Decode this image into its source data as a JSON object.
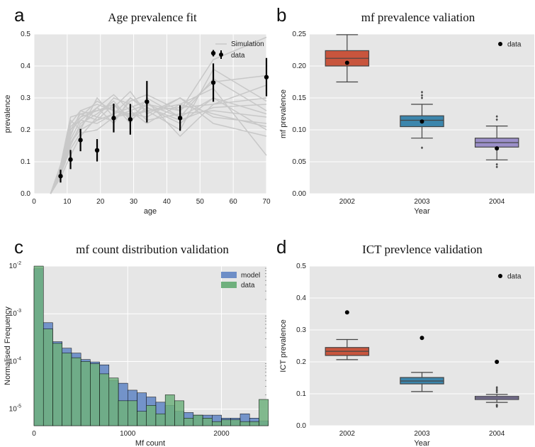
{
  "chart_data": [
    {
      "panel": "a",
      "type": "line",
      "title": "Age prevalence fit",
      "xlabel": "age",
      "ylabel": "prevalence",
      "xlim": [
        0,
        70
      ],
      "ylim": [
        0,
        0.5
      ],
      "xticks": [
        "0",
        "10",
        "20",
        "30",
        "40",
        "50",
        "60",
        "70"
      ],
      "yticks": [
        "0.0",
        "0.1",
        "0.2",
        "0.3",
        "0.4",
        "0.5"
      ],
      "grid": true,
      "legend_position": "top-right",
      "legend": [
        "Simulation",
        "data"
      ],
      "x": [
        5,
        8,
        11,
        14,
        19,
        24,
        29,
        34,
        44,
        54,
        70
      ],
      "simulation_runs": [
        [
          0,
          0.06,
          0.14,
          0.19,
          0.2,
          0.24,
          0.25,
          0.26,
          0.27,
          0.28,
          0.3
        ],
        [
          0,
          0.08,
          0.2,
          0.25,
          0.23,
          0.28,
          0.22,
          0.3,
          0.24,
          0.36,
          0.26
        ],
        [
          0,
          0.07,
          0.16,
          0.21,
          0.27,
          0.22,
          0.3,
          0.27,
          0.22,
          0.3,
          0.2
        ],
        [
          0,
          0.09,
          0.22,
          0.26,
          0.28,
          0.26,
          0.24,
          0.28,
          0.26,
          0.42,
          0.49
        ],
        [
          0,
          0.05,
          0.12,
          0.18,
          0.24,
          0.3,
          0.28,
          0.23,
          0.25,
          0.26,
          0.24
        ],
        [
          0,
          0.08,
          0.19,
          0.24,
          0.26,
          0.27,
          0.32,
          0.25,
          0.3,
          0.24,
          0.22
        ],
        [
          0,
          0.07,
          0.17,
          0.23,
          0.22,
          0.25,
          0.27,
          0.29,
          0.18,
          0.28,
          0.34
        ],
        [
          0,
          0.09,
          0.23,
          0.2,
          0.3,
          0.24,
          0.26,
          0.22,
          0.28,
          0.33,
          0.12
        ],
        [
          0,
          0.06,
          0.15,
          0.22,
          0.25,
          0.29,
          0.23,
          0.27,
          0.23,
          0.27,
          0.28
        ],
        [
          0,
          0.08,
          0.21,
          0.24,
          0.29,
          0.26,
          0.25,
          0.24,
          0.3,
          0.22,
          0.18
        ],
        [
          0,
          0.07,
          0.18,
          0.26,
          0.24,
          0.23,
          0.29,
          0.31,
          0.26,
          0.35,
          0.37
        ],
        [
          0,
          0.08,
          0.2,
          0.23,
          0.27,
          0.31,
          0.26,
          0.28,
          0.24,
          0.3,
          0.25
        ],
        [
          0,
          0.06,
          0.16,
          0.2,
          0.23,
          0.25,
          0.3,
          0.26,
          0.28,
          0.25,
          0.21
        ],
        [
          0,
          0.09,
          0.24,
          0.25,
          0.26,
          0.28,
          0.24,
          0.26,
          0.2,
          0.39,
          0.29
        ]
      ],
      "data_points": [
        {
          "x": 8,
          "y": 0.055,
          "err": 0.02
        },
        {
          "x": 11,
          "y": 0.107,
          "err": 0.03
        },
        {
          "x": 14,
          "y": 0.168,
          "err": 0.035
        },
        {
          "x": 19,
          "y": 0.136,
          "err": 0.035
        },
        {
          "x": 24,
          "y": 0.237,
          "err": 0.045
        },
        {
          "x": 29,
          "y": 0.233,
          "err": 0.048
        },
        {
          "x": 34,
          "y": 0.288,
          "err": 0.065
        },
        {
          "x": 44,
          "y": 0.237,
          "err": 0.04
        },
        {
          "x": 54,
          "y": 0.348,
          "err": 0.06
        },
        {
          "x": 54,
          "y": 0.44,
          "err": 0.01
        },
        {
          "x": 70,
          "y": 0.365,
          "err": 0.06
        }
      ]
    },
    {
      "panel": "b",
      "type": "box",
      "title": "mf prevalence valiation",
      "xlabel": "Year",
      "ylabel": "mf prevalence",
      "ylim": [
        0,
        0.25
      ],
      "yticks": [
        "0.00",
        "0.05",
        "0.10",
        "0.15",
        "0.20",
        "0.25"
      ],
      "categories": [
        "2002",
        "2003",
        "2004"
      ],
      "legend": [
        "data"
      ],
      "colors": [
        "#c8553d",
        "#3c86ac",
        "#9b8fc9"
      ],
      "boxes": [
        {
          "q1": 0.2,
          "median": 0.212,
          "q3": 0.224,
          "whisker_low": 0.175,
          "whisker_high": 0.249,
          "outliers": [],
          "data": 0.205
        },
        {
          "q1": 0.105,
          "median": 0.115,
          "q3": 0.122,
          "whisker_low": 0.087,
          "whisker_high": 0.14,
          "outliers": [
            0.072,
            0.15,
            0.154,
            0.159
          ],
          "data": 0.113
        },
        {
          "q1": 0.073,
          "median": 0.08,
          "q3": 0.087,
          "whisker_low": 0.053,
          "whisker_high": 0.106,
          "outliers": [
            0.042,
            0.046,
            0.116,
            0.121
          ],
          "data": 0.071
        }
      ]
    },
    {
      "panel": "c",
      "type": "histogram",
      "title": "mf count distribution validation",
      "xlabel": "Mf count",
      "ylabel": "Normalised Frequency",
      "xlim": [
        0,
        2480
      ],
      "ylog": true,
      "ylim": [
        4.5e-06,
        0.01
      ],
      "xticks": [
        "0",
        "1000",
        "2000"
      ],
      "yticks": [
        "10",
        "10",
        "10",
        "10"
      ],
      "yexp": [
        "-5",
        "-4",
        "-3",
        "-2"
      ],
      "legend_position": "top-right",
      "legend": [
        "model",
        "data"
      ],
      "colors": [
        "#6d8ec7",
        "#6fb07d"
      ],
      "bin_width": 100,
      "model": [
        0.0088,
        0.00065,
        0.00026,
        0.00019,
        0.00015,
        0.00011,
        9.8e-05,
        8.5e-05,
        4e-05,
        3.5e-05,
        2.5e-05,
        2.2e-05,
        1.8e-05,
        1.4e-05,
        1.2e-05,
        9e-06,
        8.5e-06,
        7.5e-06,
        7.5e-06,
        7.5e-06,
        6.5e-06,
        6.5e-06,
        8e-06,
        6.5e-06,
        5.7e-06
      ],
      "data": [
        0.01,
        0.00048,
        0.00024,
        0.00015,
        0.00012,
        0.0001,
        9e-05,
        5.5e-05,
        4.5e-05,
        1.5e-05,
        1.5e-05,
        9e-06,
        1.2e-05,
        8e-06,
        2e-05,
        1.5e-05,
        6.5e-06,
        7.5e-06,
        6.5e-06,
        5.5e-06,
        6e-06,
        6e-06,
        5.5e-06,
        5.5e-06,
        1.6e-05
      ]
    },
    {
      "panel": "d",
      "type": "box",
      "title": "ICT prevlence validation",
      "xlabel": "Year",
      "ylabel": "ICT prevalence",
      "ylim": [
        0,
        0.5
      ],
      "yticks": [
        "0.0",
        "0.1",
        "0.2",
        "0.3",
        "0.4",
        "0.5"
      ],
      "categories": [
        "2002",
        "2003",
        "2004"
      ],
      "legend": [
        "data"
      ],
      "colors": [
        "#c8553d",
        "#3c86ac",
        "#9b8fc9"
      ],
      "boxes": [
        {
          "q1": 0.22,
          "median": 0.233,
          "q3": 0.245,
          "whisker_low": 0.207,
          "whisker_high": 0.27,
          "outliers": [],
          "data": 0.355
        },
        {
          "q1": 0.131,
          "median": 0.14,
          "q3": 0.151,
          "whisker_low": 0.107,
          "whisker_high": 0.167,
          "outliers": [],
          "data": 0.275
        },
        {
          "q1": 0.082,
          "median": 0.087,
          "q3": 0.092,
          "whisker_low": 0.073,
          "whisker_high": 0.098,
          "outliers": [
            0.06,
            0.063,
            0.065,
            0.105,
            0.11,
            0.115,
            0.12
          ],
          "data": 0.2
        }
      ]
    }
  ]
}
